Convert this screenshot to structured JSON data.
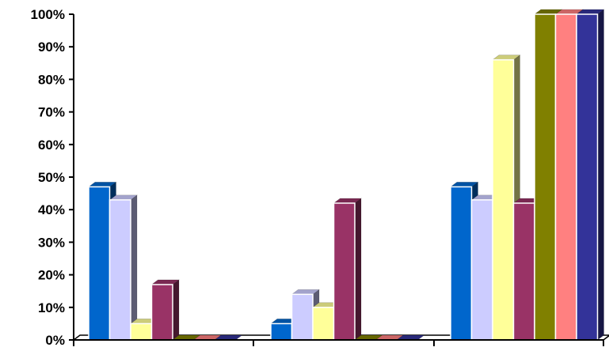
{
  "chart_data": {
    "type": "bar",
    "style": "3d-clustered-column",
    "categories": [
      "",
      "",
      ""
    ],
    "series": [
      {
        "color": "#0066cc",
        "values": [
          47,
          5,
          47
        ]
      },
      {
        "color": "#ccccff",
        "values": [
          43,
          14,
          43
        ]
      },
      {
        "color": "#ffff99",
        "values": [
          5,
          10,
          86
        ]
      },
      {
        "color": "#993366",
        "values": [
          17,
          42,
          42
        ]
      },
      {
        "color": "#808000",
        "values": [
          0,
          0,
          100
        ]
      },
      {
        "color": "#ff8080",
        "values": [
          0,
          0,
          100
        ]
      },
      {
        "color": "#333399",
        "values": [
          0,
          0,
          100
        ]
      }
    ],
    "y_ticks": [
      "0%",
      "10%",
      "20%",
      "30%",
      "40%",
      "50%",
      "60%",
      "70%",
      "80%",
      "90%",
      "100%"
    ],
    "ylim": [
      0,
      100
    ],
    "title": "",
    "xlabel": "",
    "ylabel": "",
    "grid": false,
    "legend": "none"
  }
}
